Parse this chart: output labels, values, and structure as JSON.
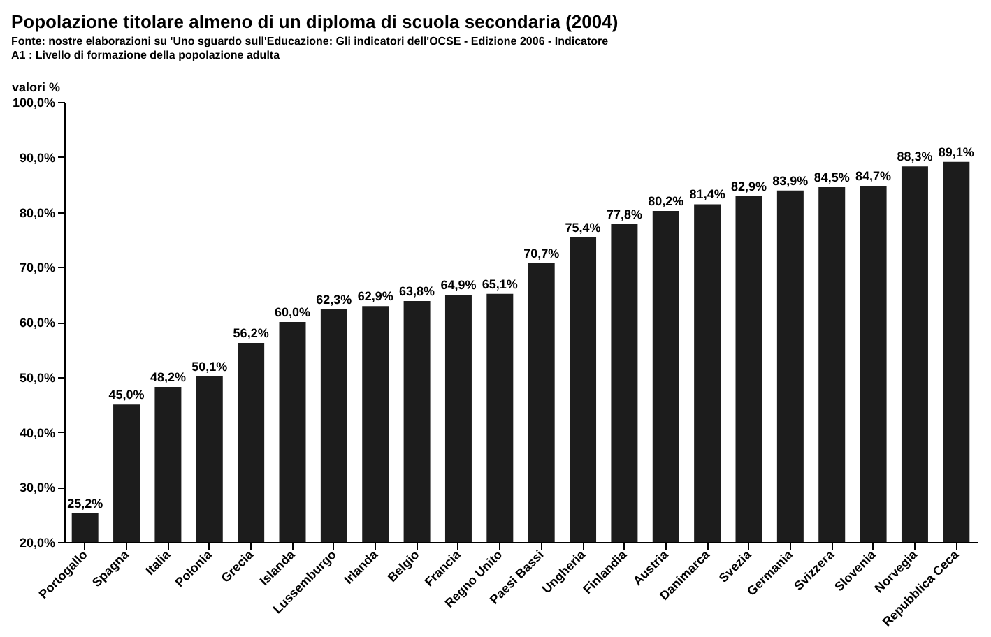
{
  "chart_data": {
    "type": "bar",
    "title": "Popolazione titolare almeno di un diploma di scuola secondaria (2004)",
    "subtitle": "Fonte: nostre elaborazioni su 'Uno sguardo sull'Educazione: Gli indicatori dell'OCSE - Edizione 2006 - Indicatore\nA1 : Livello di formazione della popolazione adulta",
    "ylabel": "valori %",
    "categories": [
      "Portogallo",
      "Spagna",
      "Italia",
      "Polonia",
      "Grecia",
      "Islanda",
      "Lussemburgo",
      "Irlanda",
      "Belgio",
      "Francia",
      "Regno Unito",
      "Paesi Bassi",
      "Ungheria",
      "Finlandia",
      "Austria",
      "Danimarca",
      "Svezia",
      "Germania",
      "Svizzera",
      "Slovenia",
      "Norvegia",
      "Repubblica Ceca"
    ],
    "values": [
      25.2,
      45.0,
      48.2,
      50.1,
      56.2,
      60.0,
      62.3,
      62.9,
      63.8,
      64.9,
      65.1,
      70.7,
      75.4,
      77.8,
      80.2,
      81.4,
      82.9,
      83.9,
      84.5,
      84.7,
      88.3,
      89.1
    ],
    "value_labels": [
      "25,2%",
      "45,0%",
      "48,2%",
      "50,1%",
      "56,2%",
      "60,0%",
      "62,3%",
      "62,9%",
      "63,8%",
      "64,9%",
      "65,1%",
      "70,7%",
      "75,4%",
      "77,8%",
      "80,2%",
      "81,4%",
      "82,9%",
      "83,9%",
      "84,5%",
      "84,7%",
      "88,3%",
      "89,1%"
    ],
    "color": "#1c1c1c",
    "ylim": [
      20,
      100
    ],
    "yticks": [
      {
        "value": 20,
        "label": "20,0%"
      },
      {
        "value": 30,
        "label": "30,0%"
      },
      {
        "value": 40,
        "label": "40,0%"
      },
      {
        "value": 50,
        "label": "50,0%"
      },
      {
        "value": 60,
        "label": "60,0%"
      },
      {
        "value": 70,
        "label": "70,0%"
      },
      {
        "value": 80,
        "label": "80,0%"
      },
      {
        "value": 90,
        "label": "90,0%"
      },
      {
        "value": 100,
        "label": "100,0%"
      }
    ],
    "grid": false
  }
}
